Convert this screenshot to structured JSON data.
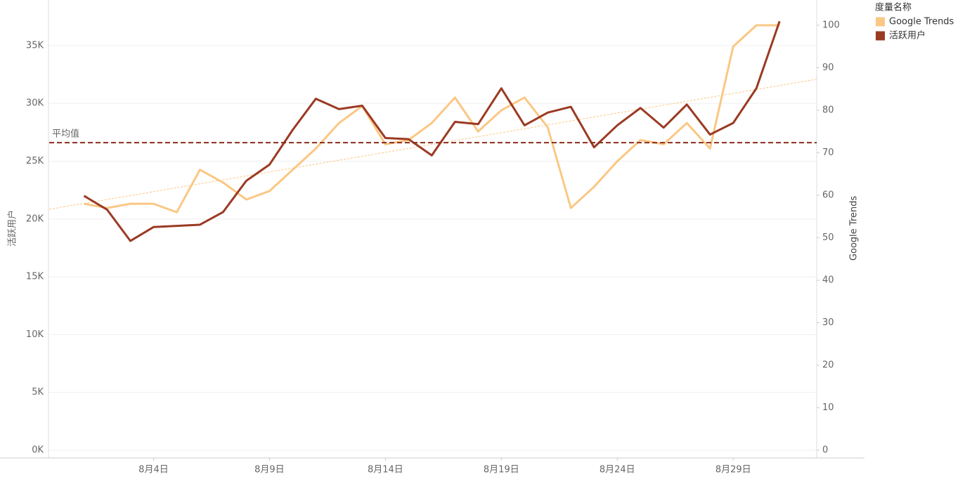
{
  "chart_data": {
    "type": "line",
    "legend": {
      "title": "度量名称",
      "position": "top-right"
    },
    "y_label": "活跃用户",
    "y2_label": "Google Trends",
    "x": [
      1,
      2,
      3,
      4,
      5,
      6,
      7,
      8,
      9,
      10,
      11,
      12,
      13,
      14,
      15,
      16,
      17,
      18,
      19,
      20,
      21,
      22,
      23,
      24,
      25,
      26,
      27,
      28,
      29,
      30,
      31
    ],
    "xlim": [
      -0.5,
      32.6
    ],
    "xticks": [
      {
        "value": 4,
        "label": "8月4日"
      },
      {
        "value": 9,
        "label": "8月9日"
      },
      {
        "value": 14,
        "label": "8月14日"
      },
      {
        "value": 19,
        "label": "8月19日"
      },
      {
        "value": 24,
        "label": "8月24日"
      },
      {
        "value": 29,
        "label": "8月29日"
      }
    ],
    "ylim": [
      -670,
      38940
    ],
    "yticks": [
      {
        "value": 0,
        "label": "0K"
      },
      {
        "value": 5000,
        "label": "5K"
      },
      {
        "value": 10000,
        "label": "10K"
      },
      {
        "value": 15000,
        "label": "15K"
      },
      {
        "value": 20000,
        "label": "20K"
      },
      {
        "value": 25000,
        "label": "25K"
      },
      {
        "value": 30000,
        "label": "30K"
      },
      {
        "value": 35000,
        "label": "35K"
      }
    ],
    "y2lim": [
      -1.8,
      105.95
    ],
    "y2ticks": [
      0,
      10,
      20,
      30,
      40,
      50,
      60,
      70,
      80,
      90,
      100
    ],
    "grid": true,
    "series": [
      {
        "name": "Google Trends",
        "color": "#fbc784",
        "axis": "y2",
        "values": [
          58,
          57,
          58,
          58,
          56,
          66,
          63,
          59,
          61,
          66,
          71,
          77,
          81,
          72,
          73,
          77,
          83,
          75,
          80,
          83,
          76,
          57,
          62,
          68,
          73,
          72,
          77,
          71,
          95,
          100,
          100
        ]
      },
      {
        "name": "活跃用户",
        "color": "#9b3a23",
        "values": [
          22000,
          20800,
          18100,
          19300,
          19400,
          19500,
          20600,
          23300,
          24700,
          27700,
          30400,
          29500,
          29800,
          27000,
          26900,
          25500,
          28400,
          28200,
          31300,
          28100,
          29200,
          29700,
          26200,
          28100,
          29600,
          27900,
          29900,
          27300,
          28300,
          31300,
          37100
        ]
      }
    ],
    "reference_line": {
      "label": "平均值",
      "value": 26600,
      "color": "#8b2d1a"
    },
    "trend_line": {
      "axis": "y2",
      "color": "#fbc784",
      "values": [
        56.7,
        87.3
      ]
    }
  }
}
